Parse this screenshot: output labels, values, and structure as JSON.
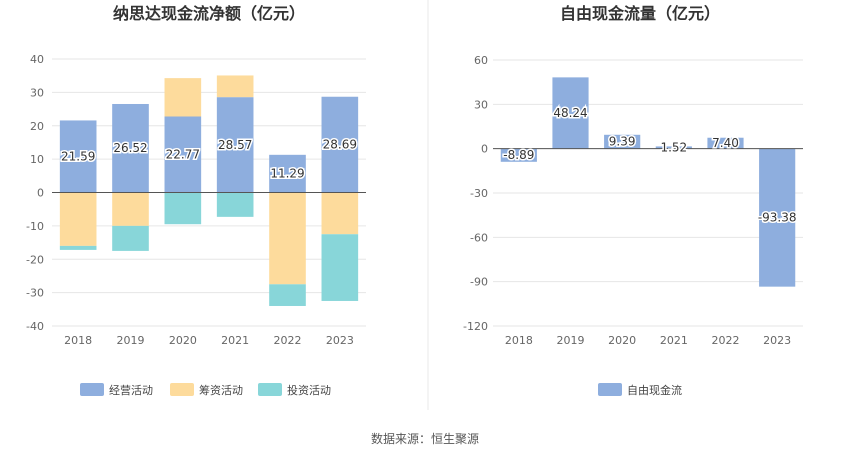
{
  "chart_data": [
    {
      "type": "bar",
      "title": "纳思达现金流净额（亿元）",
      "categories": [
        "2018",
        "2019",
        "2020",
        "2021",
        "2022",
        "2023"
      ],
      "yticks": [
        "40",
        "30",
        "20",
        "10",
        "0",
        "-10",
        "-20",
        "-30",
        "-40"
      ],
      "ylim": [
        -40,
        40
      ],
      "stacked": true,
      "series": [
        {
          "name": "经营活动",
          "color": "#8eaede",
          "values": [
            21.59,
            26.52,
            22.77,
            28.57,
            11.29,
            28.69
          ],
          "labels": [
            "21.59",
            "26.52",
            "22.77",
            "28.57",
            "11.29",
            "28.69"
          ]
        },
        {
          "name": "筹资活动",
          "color": "#fddb9c",
          "values": [
            -16.0,
            -10.0,
            11.5,
            6.5,
            -27.5,
            -12.5
          ]
        },
        {
          "name": "投资活动",
          "color": "#88d6d9",
          "values": [
            -1.2,
            -7.5,
            -9.5,
            -7.3,
            -6.5,
            -20.0
          ]
        }
      ],
      "legend_position": "bottom"
    },
    {
      "type": "bar",
      "title": "自由现金流量（亿元）",
      "categories": [
        "2018",
        "2019",
        "2020",
        "2021",
        "2022",
        "2023"
      ],
      "yticks": [
        "60",
        "30",
        "0",
        "-30",
        "-60",
        "-90",
        "-120"
      ],
      "ylim": [
        -120,
        60
      ],
      "series": [
        {
          "name": "自由现金流",
          "color": "#8eaede",
          "values": [
            -8.89,
            48.24,
            9.39,
            1.52,
            7.4,
            -93.38
          ],
          "labels": [
            "-8.89",
            "48.24",
            "9.39",
            "1.52",
            "7.40",
            "-93.38"
          ]
        }
      ],
      "legend_position": "bottom"
    }
  ],
  "source": "数据来源：恒生聚源"
}
